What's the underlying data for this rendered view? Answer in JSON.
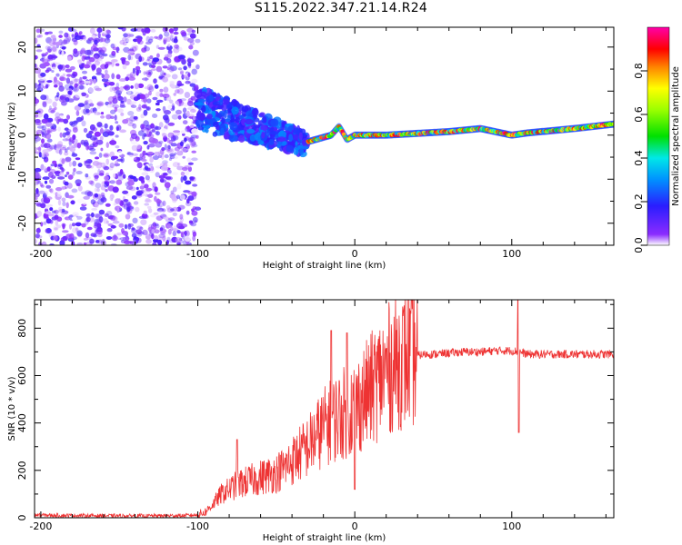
{
  "title": "S115.2022.347.21.14.R24",
  "colors": {
    "snr_line": "#ee3333",
    "axis": "#000000",
    "background": "#ffffff"
  },
  "chart_data": [
    {
      "type": "heatmap",
      "title": "",
      "xlabel": "Height of straight line (km)",
      "ylabel": "Frequency (Hz)",
      "xlim": [
        -204,
        165
      ],
      "ylim": [
        -25,
        24.5
      ],
      "xticks": [
        -200,
        -100,
        0,
        100
      ],
      "yticks": [
        -20,
        -10,
        0,
        10,
        20
      ],
      "grid": false,
      "colorbar": {
        "label": "Normalized spectral amplitude",
        "range": [
          0,
          1
        ],
        "ticks": [
          0.0,
          0.2,
          0.4,
          0.6,
          0.8
        ],
        "colormap": "rainbow (violet-blue-cyan-green-yellow-red-magenta)"
      },
      "regions": [
        {
          "x_range": [
            -204,
            -100
          ],
          "freq_range": [
            -25,
            24.5
          ],
          "amplitude": [
            0.0,
            0.15
          ],
          "description_kind": "noise"
        },
        {
          "x_range": [
            -100,
            -30
          ],
          "freq_center": [
            6,
            -2
          ],
          "freq_halfwidth": 5,
          "amplitude": [
            0.1,
            0.3
          ]
        },
        {
          "x_range": [
            -30,
            165
          ],
          "freq_center_points": [
            [
              -30,
              -1.5
            ],
            [
              -15,
              0
            ],
            [
              -10,
              2
            ],
            [
              -5,
              -1
            ],
            [
              0,
              0
            ],
            [
              20,
              0
            ],
            [
              60,
              0.8
            ],
            [
              80,
              1.5
            ],
            [
              100,
              0
            ],
            [
              110,
              0.5
            ],
            [
              140,
              1.5
            ],
            [
              165,
              2.5
            ]
          ],
          "amplitude": [
            0.3,
            1.0
          ]
        }
      ]
    },
    {
      "type": "line",
      "title": "",
      "xlabel": "Height of straight line (km)",
      "ylabel": "SNR (10 * v/v)",
      "xlim": [
        -204,
        165
      ],
      "ylim": [
        0,
        920
      ],
      "xticks": [
        -200,
        -100,
        0,
        100
      ],
      "yticks": [
        0,
        200,
        400,
        600,
        800
      ],
      "grid": false,
      "series": [
        {
          "x": [
            -204,
            -190,
            -170,
            -150,
            -130,
            -110,
            -100,
            -95,
            -90,
            -85,
            -80,
            -75,
            -70,
            -65,
            -60,
            -55,
            -50,
            -45,
            -40,
            -35,
            -30,
            -25,
            -20,
            -15,
            -10,
            -5,
            0,
            5,
            10,
            15,
            20,
            25,
            30,
            35,
            40,
            45,
            50,
            60,
            70,
            80,
            90,
            100,
            105,
            110,
            120,
            130,
            140,
            150,
            165
          ],
          "values": [
            12,
            10,
            9,
            8,
            8,
            9,
            12,
            25,
            60,
            100,
            120,
            140,
            150,
            160,
            170,
            180,
            190,
            210,
            240,
            270,
            300,
            340,
            380,
            410,
            430,
            450,
            470,
            500,
            540,
            580,
            620,
            650,
            670,
            680,
            685,
            690,
            690,
            695,
            700,
            700,
            705,
            705,
            700,
            690,
            690,
            690,
            690,
            690,
            690
          ]
        }
      ],
      "spikes": [
        {
          "x": -75,
          "value": 330
        },
        {
          "x": -15,
          "value": 790
        },
        {
          "x": -5,
          "value": 780
        },
        {
          "x": 0,
          "value": 120
        },
        {
          "x": 104,
          "value": 920
        },
        {
          "x": 104.5,
          "value": 360
        }
      ]
    }
  ]
}
